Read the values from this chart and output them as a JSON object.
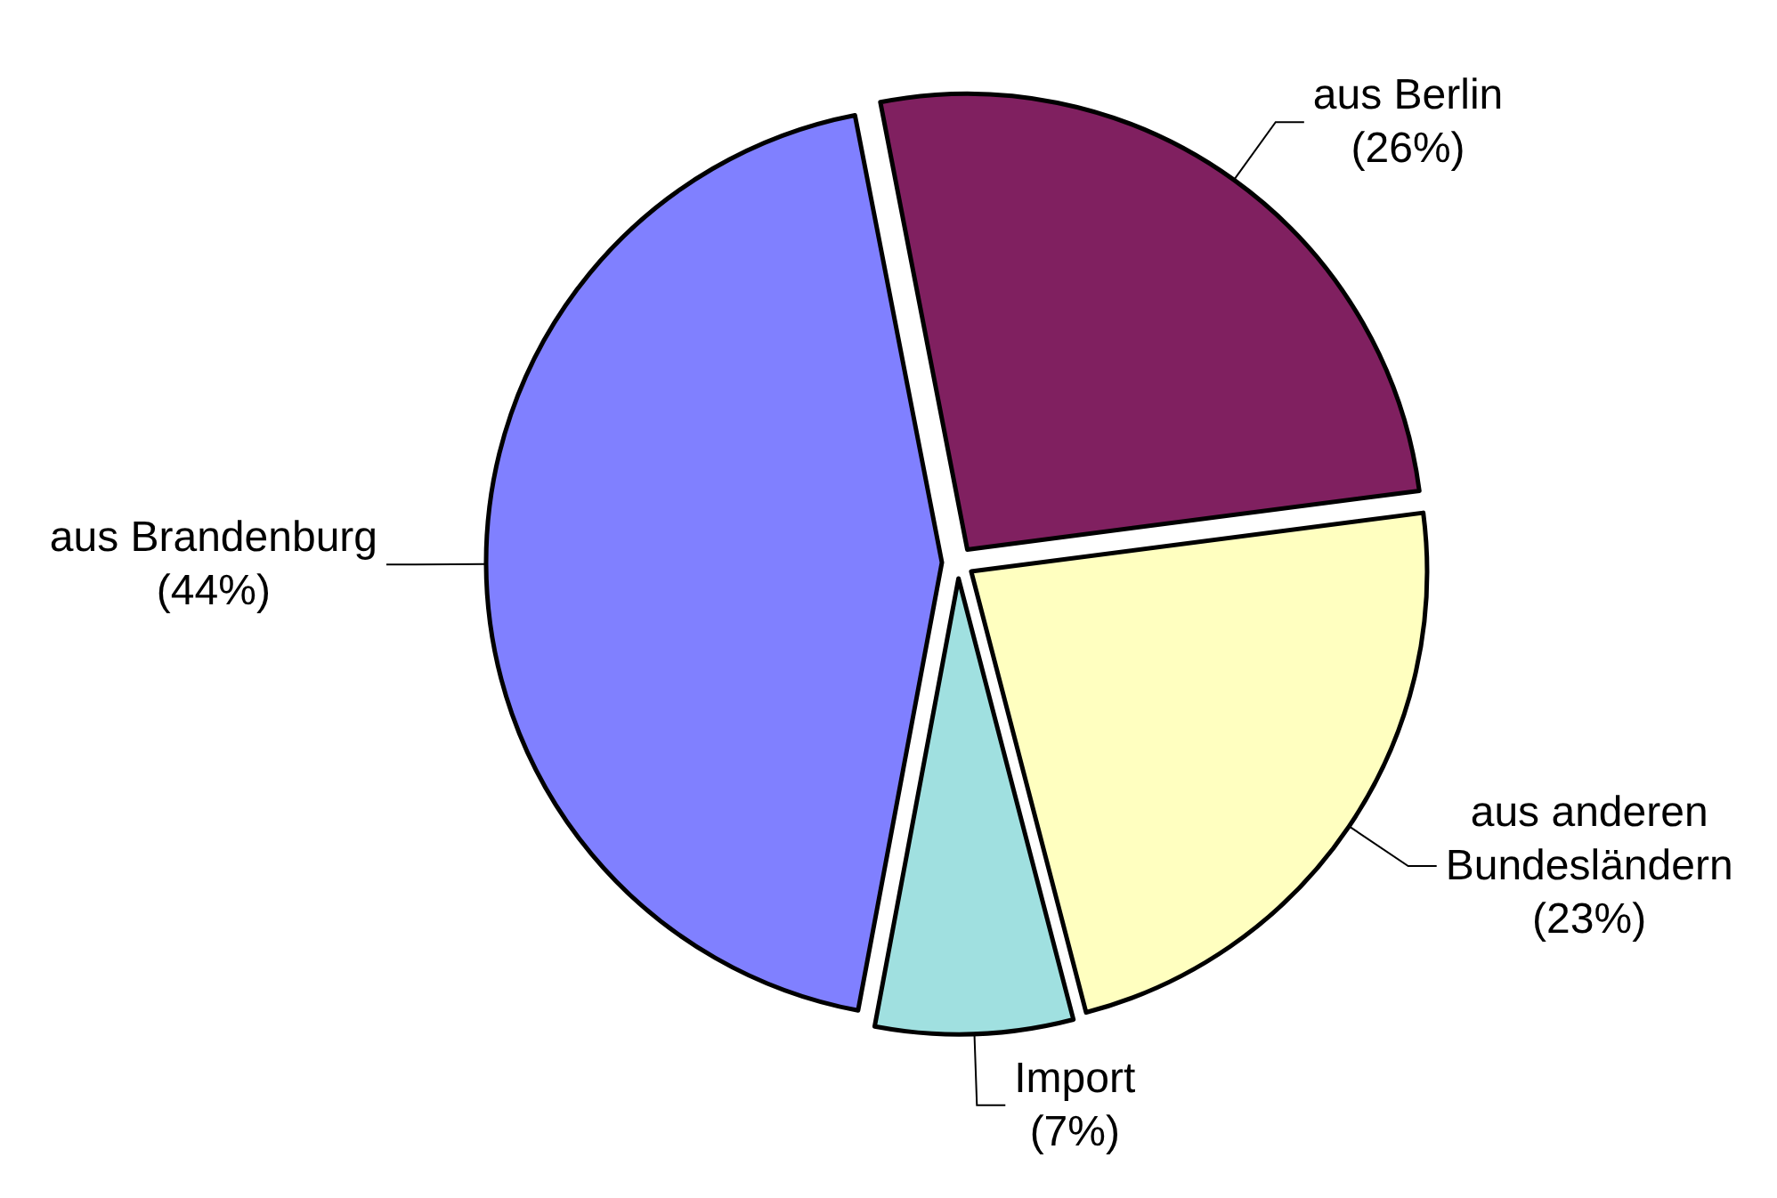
{
  "chart_data": {
    "type": "pie",
    "categories": [
      "aus Berlin",
      "aus anderen Bundesländern",
      "Import",
      "aus Brandenburg"
    ],
    "values": [
      26,
      23,
      7,
      44
    ],
    "value_labels": [
      "(26%)",
      "(23%)",
      "(7%)",
      "(44%)"
    ],
    "colors": [
      "#802060",
      "#ffffc0",
      "#a0e0e0",
      "#8080ff"
    ]
  }
}
